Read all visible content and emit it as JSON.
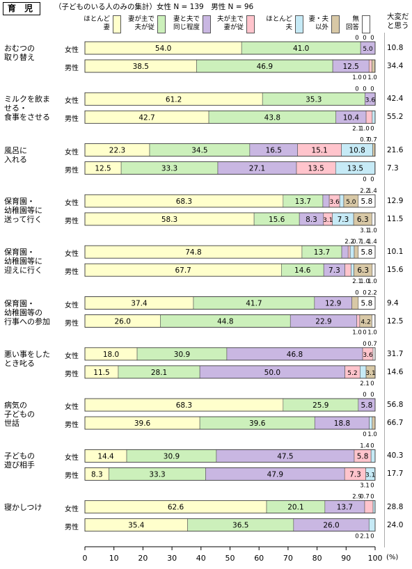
{
  "section_tag": "育 児",
  "note": "（子どものいる人のみの集計）女性 N = 139　男性 N = 96",
  "legend": [
    {
      "label": "ほとんど\n妻",
      "color": "#ffffcc"
    },
    {
      "label": "妻が主で\n夫が従",
      "color": "#ccf0bb"
    },
    {
      "label": "妻と夫で\n同じ程度",
      "color": "#c9b7e2"
    },
    {
      "label": "夫が主で\n妻が従",
      "color": "#ffc4cc"
    },
    {
      "label": "ほとんど\n夫",
      "color": "#c6eaf6"
    },
    {
      "label": "妻・夫\n以外",
      "color": "#d8c8a6"
    },
    {
      "label": "無\n回答",
      "color": "#ffffff"
    }
  ],
  "hard_header": "大変だ\nと思う",
  "unit": "(%)",
  "chart_data": {
    "type": "bar",
    "stacked": true,
    "orientation": "horizontal",
    "series_names": [
      "ほとんど妻",
      "妻が主で夫が従",
      "妻と夫で同じ程度",
      "夫が主で妻が従",
      "ほとんど夫",
      "妻・夫以外",
      "無回答"
    ],
    "xlim": [
      0,
      100
    ],
    "xticks": [
      "0",
      "10",
      "20",
      "30",
      "40",
      "50",
      "60",
      "70",
      "80",
      "90",
      "100"
    ],
    "groups": [
      {
        "label": "おむつの\n取り替え",
        "rows": [
          {
            "sex": "女性",
            "values": [
              54.0,
              41.0,
              5.0,
              0,
              0,
              0,
              0
            ],
            "hard": "10.8",
            "small": [
              "0",
              "0",
              "0"
            ]
          },
          {
            "sex": "男性",
            "values": [
              38.5,
              46.9,
              12.5,
              1.0,
              0,
              1.0,
              0
            ],
            "hard": "34.4",
            "small": [
              "1.0",
              "0",
              "1.0"
            ]
          }
        ]
      },
      {
        "label": "ミルクを飲ま\nせる・\n食事をさせる",
        "rows": [
          {
            "sex": "女性",
            "values": [
              61.2,
              35.3,
              3.6,
              0,
              0,
              0,
              0
            ],
            "hard": "42.4",
            "small": [
              "0",
              "0",
              "0"
            ]
          },
          {
            "sex": "男性",
            "values": [
              42.7,
              43.8,
              10.4,
              2.1,
              1.0,
              0,
              0
            ],
            "hard": "55.2",
            "small": [
              "2.1",
              "1.0",
              "0"
            ]
          }
        ]
      },
      {
        "label": "風呂に\n入れる",
        "rows": [
          {
            "sex": "女性",
            "values": [
              22.3,
              34.5,
              16.5,
              15.1,
              10.8,
              0.7,
              0
            ],
            "hard": "21.6",
            "small": [
              "0.7",
              "0.7"
            ]
          },
          {
            "sex": "男性",
            "values": [
              12.5,
              33.3,
              27.1,
              13.5,
              13.5,
              0,
              0
            ],
            "hard": "7.3",
            "small": [
              "0",
              "0"
            ]
          }
        ]
      },
      {
        "label": "保育園・\n幼稚園等に\n送って行く",
        "rows": [
          {
            "sex": "女性",
            "values": [
              68.3,
              13.7,
              2.2,
              3.6,
              1.4,
              5.0,
              5.8
            ],
            "hard": "12.9",
            "small": [
              "2.2",
              "1.4"
            ]
          },
          {
            "sex": "男性",
            "values": [
              58.3,
              15.6,
              8.3,
              3.1,
              7.3,
              6.3,
              1.0
            ],
            "hard": "11.5",
            "small": [
              "3.1",
              "1.0"
            ]
          }
        ]
      },
      {
        "label": "保育園・\n幼稚園等に\n迎えに行く",
        "rows": [
          {
            "sex": "女性",
            "values": [
              74.8,
              13.7,
              2.2,
              0.7,
              1.4,
              1.4,
              5.8
            ],
            "hard": "10.1",
            "small": [
              "2.2",
              "0.7",
              "1.4",
              "1.4"
            ]
          },
          {
            "sex": "男性",
            "values": [
              67.7,
              14.6,
              7.3,
              2.1,
              1.0,
              6.3,
              1.0
            ],
            "hard": "15.6",
            "small": [
              "2.1",
              "1.0",
              "1.0"
            ]
          }
        ]
      },
      {
        "label": "保育園・\n幼稚園等の\n行事への参加",
        "rows": [
          {
            "sex": "女性",
            "values": [
              37.4,
              41.7,
              12.9,
              0,
              0,
              2.2,
              5.8
            ],
            "hard": "9.4",
            "small": [
              "0",
              "0",
              "2.2"
            ]
          },
          {
            "sex": "男性",
            "values": [
              26.0,
              44.8,
              22.9,
              1.0,
              0,
              4.2,
              1.0
            ],
            "hard": "12.5",
            "small": [
              "1.0",
              "0",
              "1.0"
            ]
          }
        ]
      },
      {
        "label": "悪い事をした\nとき叱る",
        "rows": [
          {
            "sex": "女性",
            "values": [
              18.0,
              30.9,
              46.8,
              3.6,
              0,
              0,
              0.7
            ],
            "hard": "31.7",
            "small": [
              "0",
              "0.7"
            ]
          },
          {
            "sex": "男性",
            "values": [
              11.5,
              28.1,
              50.0,
              5.2,
              2.1,
              3.1,
              0
            ],
            "hard": "14.6",
            "small": [
              "2.1",
              "0"
            ]
          }
        ]
      },
      {
        "label": "病気の\n子どもの\n世話",
        "rows": [
          {
            "sex": "女性",
            "values": [
              68.3,
              25.9,
              5.8,
              0,
              0,
              0,
              0
            ],
            "hard": "56.8",
            "small": [
              "0",
              "0"
            ]
          },
          {
            "sex": "男性",
            "values": [
              39.6,
              39.6,
              18.8,
              0,
              1.0,
              1.0,
              0
            ],
            "hard": "66.7",
            "small": [
              "0",
              "1.0"
            ]
          }
        ]
      },
      {
        "label": "子どもの\n遊び相手",
        "rows": [
          {
            "sex": "女性",
            "values": [
              14.4,
              30.9,
              47.5,
              5.8,
              1.4,
              0,
              0
            ],
            "hard": "40.3",
            "small": [
              "1.4",
              "0"
            ]
          },
          {
            "sex": "男性",
            "values": [
              8.3,
              33.3,
              47.9,
              7.3,
              3.1,
              0,
              0
            ],
            "hard": "17.7",
            "small": [
              "3.1",
              "0"
            ]
          }
        ]
      },
      {
        "label": "寝かしつけ",
        "rows": [
          {
            "sex": "女性",
            "values": [
              62.6,
              20.1,
              13.7,
              2.9,
              0.7,
              0,
              0
            ],
            "hard": "28.8",
            "small": [
              "2.9",
              "0.7",
              "0"
            ]
          },
          {
            "sex": "男性",
            "values": [
              35.4,
              36.5,
              26.0,
              0,
              2.1,
              0,
              0
            ],
            "hard": "24.0",
            "small": [
              "0",
              "2.1",
              "0"
            ]
          }
        ]
      }
    ]
  }
}
